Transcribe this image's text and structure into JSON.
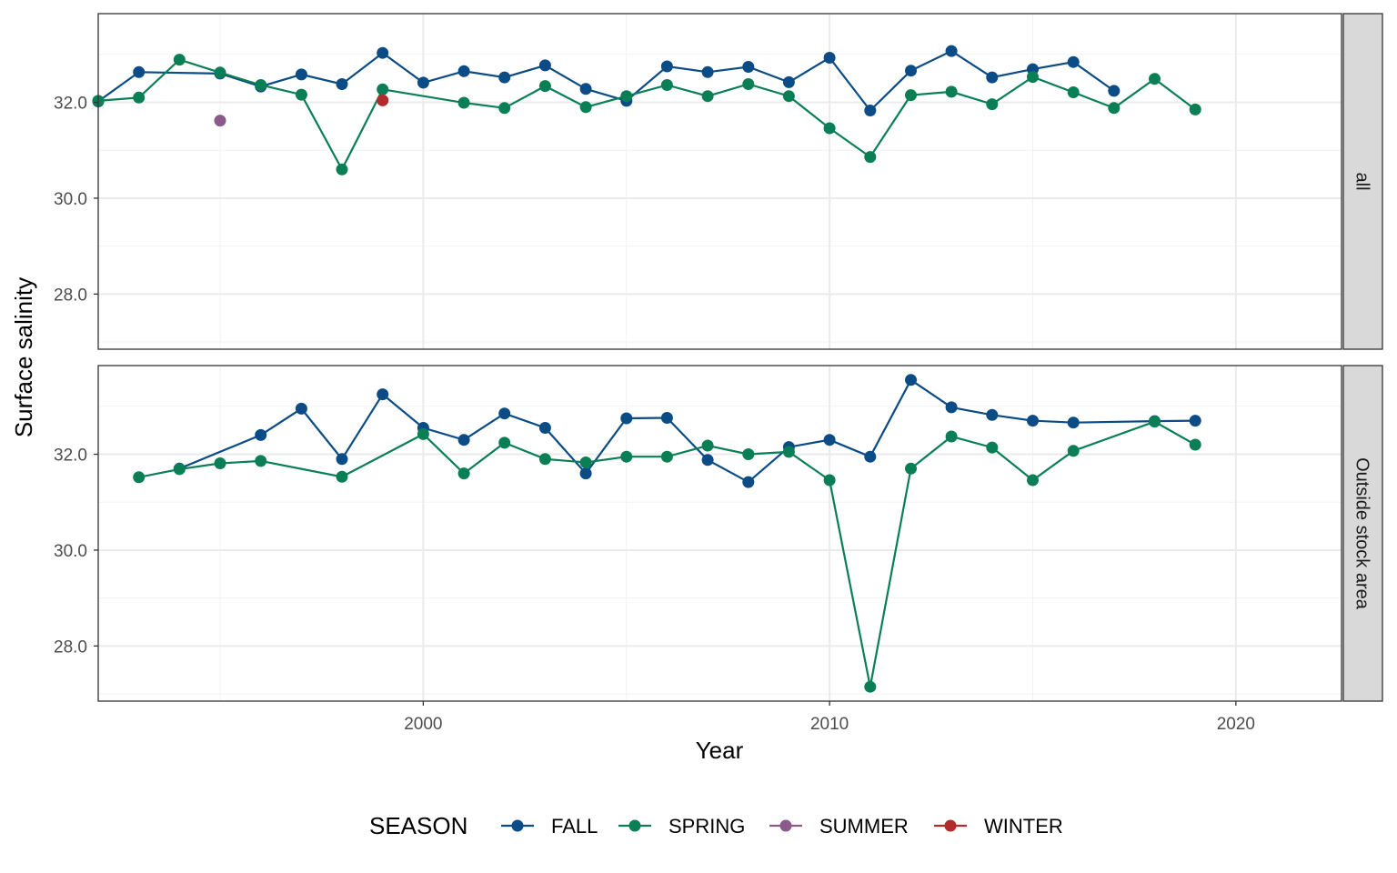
{
  "chart_data": {
    "type": "line",
    "xlabel": "Year",
    "ylabel": "Surface salinity",
    "xlim": [
      1992.0,
      2022.6
    ],
    "ylim": [
      26.85,
      33.85
    ],
    "x_ticks": [
      2000,
      2010,
      2020
    ],
    "y_ticks": [
      28.0,
      30.0,
      32.0
    ],
    "y_tick_labels": [
      "28.0",
      "30.0",
      "32.0"
    ],
    "grid": true,
    "legend": {
      "title": "SEASON",
      "position": "bottom",
      "items": [
        {
          "name": "FALL",
          "color": "#0b4c86"
        },
        {
          "name": "SPRING",
          "color": "#0a7f56"
        },
        {
          "name": "SUMMER",
          "color": "#8a5a8a"
        },
        {
          "name": "WINTER",
          "color": "#b22c2c"
        }
      ]
    },
    "panels": [
      {
        "strip": "all",
        "series": [
          {
            "name": "FALL",
            "color": "#0b4c86",
            "points": [
              [
                1992,
                32.02
              ],
              [
                1993,
                32.63
              ],
              [
                1995,
                32.6
              ],
              [
                1996,
                32.33
              ],
              [
                1997,
                32.58
              ],
              [
                1998,
                32.38
              ],
              [
                1999,
                33.03
              ],
              [
                2000,
                32.41
              ],
              [
                2001,
                32.65
              ],
              [
                2002,
                32.52
              ],
              [
                2003,
                32.77
              ],
              [
                2004,
                32.28
              ],
              [
                2005,
                32.03
              ],
              [
                2006,
                32.75
              ],
              [
                2007,
                32.63
              ],
              [
                2008,
                32.74
              ],
              [
                2009,
                32.42
              ],
              [
                2010,
                32.93
              ],
              [
                2011,
                31.83
              ],
              [
                2012,
                32.66
              ],
              [
                2013,
                33.07
              ],
              [
                2014,
                32.52
              ],
              [
                2015,
                32.69
              ],
              [
                2016,
                32.84
              ],
              [
                2017,
                32.24
              ]
            ]
          },
          {
            "name": "SPRING",
            "color": "#0a7f56",
            "points": [
              [
                1992,
                32.03
              ],
              [
                1993,
                32.1
              ],
              [
                1994,
                32.89
              ],
              [
                1995,
                32.62
              ],
              [
                1996,
                32.36
              ],
              [
                1997,
                32.16
              ],
              [
                1998,
                30.6
              ],
              [
                1999,
                32.27
              ],
              [
                2001,
                31.99
              ],
              [
                2002,
                31.88
              ],
              [
                2003,
                32.34
              ],
              [
                2004,
                31.9
              ],
              [
                2005,
                32.13
              ],
              [
                2006,
                32.36
              ],
              [
                2007,
                32.13
              ],
              [
                2008,
                32.38
              ],
              [
                2009,
                32.13
              ],
              [
                2010,
                31.46
              ],
              [
                2011,
                30.86
              ],
              [
                2012,
                32.15
              ],
              [
                2013,
                32.22
              ],
              [
                2014,
                31.96
              ],
              [
                2015,
                32.53
              ],
              [
                2016,
                32.21
              ],
              [
                2017,
                31.88
              ],
              [
                2018,
                32.49
              ],
              [
                2019,
                31.85
              ]
            ]
          },
          {
            "name": "SUMMER",
            "color": "#8a5a8a",
            "points": [
              [
                1995,
                31.62
              ]
            ]
          },
          {
            "name": "WINTER",
            "color": "#b22c2c",
            "points": [
              [
                1999,
                32.04
              ]
            ]
          }
        ]
      },
      {
        "strip": "Outside stock area",
        "series": [
          {
            "name": "FALL",
            "color": "#0b4c86",
            "points": [
              [
                1994,
                31.7
              ],
              [
                1996,
                32.4
              ],
              [
                1997,
                32.95
              ],
              [
                1998,
                31.9
              ],
              [
                1999,
                33.25
              ],
              [
                2000,
                32.55
              ],
              [
                2001,
                32.3
              ],
              [
                2002,
                32.85
              ],
              [
                2003,
                32.55
              ],
              [
                2004,
                31.6
              ],
              [
                2005,
                32.75
              ],
              [
                2006,
                32.76
              ],
              [
                2007,
                31.88
              ],
              [
                2008,
                31.42
              ],
              [
                2009,
                32.15
              ],
              [
                2010,
                32.3
              ],
              [
                2011,
                31.95
              ],
              [
                2012,
                33.55
              ],
              [
                2013,
                32.98
              ],
              [
                2014,
                32.82
              ],
              [
                2015,
                32.7
              ],
              [
                2016,
                32.66
              ],
              [
                2018,
                32.69
              ],
              [
                2019,
                32.7
              ]
            ]
          },
          {
            "name": "SPRING",
            "color": "#0a7f56",
            "points": [
              [
                1993,
                31.52
              ],
              [
                1994,
                31.69
              ],
              [
                1995,
                31.81
              ],
              [
                1996,
                31.86
              ],
              [
                1998,
                31.53
              ],
              [
                2000,
                32.42
              ],
              [
                2001,
                31.6
              ],
              [
                2002,
                32.24
              ],
              [
                2003,
                31.9
              ],
              [
                2004,
                31.83
              ],
              [
                2005,
                31.95
              ],
              [
                2006,
                31.95
              ],
              [
                2007,
                32.18
              ],
              [
                2008,
                32.0
              ],
              [
                2009,
                32.05
              ],
              [
                2010,
                31.46
              ],
              [
                2011,
                27.15
              ],
              [
                2012,
                31.7
              ],
              [
                2013,
                32.37
              ],
              [
                2014,
                32.14
              ],
              [
                2015,
                31.46
              ],
              [
                2016,
                32.07
              ],
              [
                2018,
                32.68
              ],
              [
                2019,
                32.2
              ]
            ]
          }
        ]
      }
    ]
  }
}
